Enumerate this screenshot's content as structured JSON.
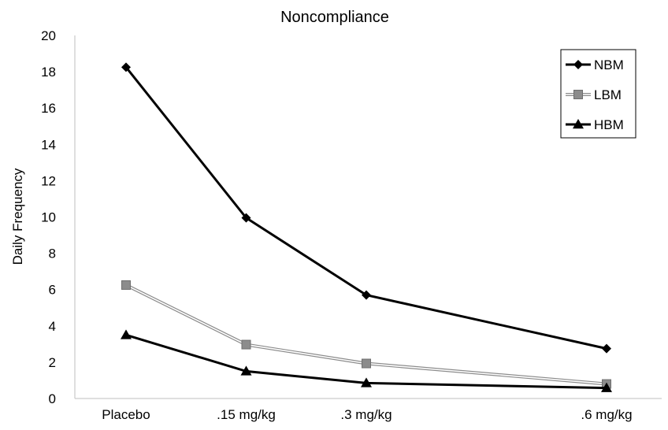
{
  "chart_data": {
    "type": "line",
    "title": "Noncompliance",
    "xlabel": "",
    "ylabel": "Daily Frequency",
    "categories": [
      "Placebo",
      ".15 mg/kg",
      ".3 mg/kg",
      ".6 mg/kg"
    ],
    "x": [
      0,
      0.15,
      0.3,
      0.6
    ],
    "ylim": [
      0,
      20
    ],
    "yticks": [
      "0",
      "2",
      "4",
      "6",
      "8",
      "10",
      "12",
      "14",
      "16",
      "18",
      "20"
    ],
    "grid": false,
    "legend_position": "top-right",
    "series": [
      {
        "name": "NBM",
        "values": [
          18.25,
          9.95,
          5.7,
          2.75
        ],
        "marker": "diamond",
        "color": "#000000"
      },
      {
        "name": "LBM",
        "values": [
          6.25,
          2.97,
          1.93,
          0.8
        ],
        "marker": "square",
        "color": "#8c8c8c"
      },
      {
        "name": "HBM",
        "values": [
          3.5,
          1.5,
          0.85,
          0.58
        ],
        "marker": "triangle",
        "color": "#000000"
      }
    ]
  }
}
